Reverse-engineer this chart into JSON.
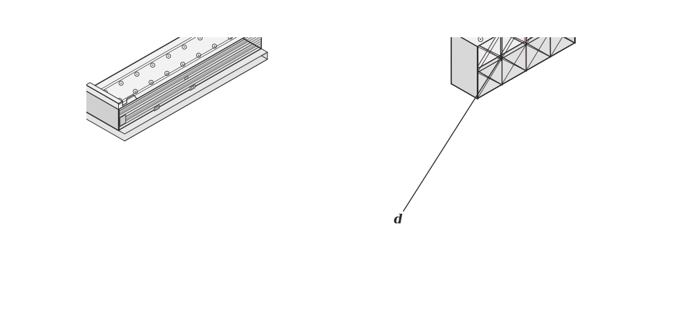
{
  "background_color": "#ffffff",
  "label_d": "d",
  "label_fontsize": 13,
  "label_fontweight": "bold",
  "figsize": [
    10.0,
    4.54
  ],
  "dpi": 100,
  "line_color": "#2a2a2a",
  "lw_main": 1.0,
  "lw_thin": 0.5,
  "face_top": "#f2f2f2",
  "face_front": "#e8e8e8",
  "face_side": "#d8d8d8",
  "face_inner": "#eeeeee",
  "face_base": "#e0e0e0"
}
